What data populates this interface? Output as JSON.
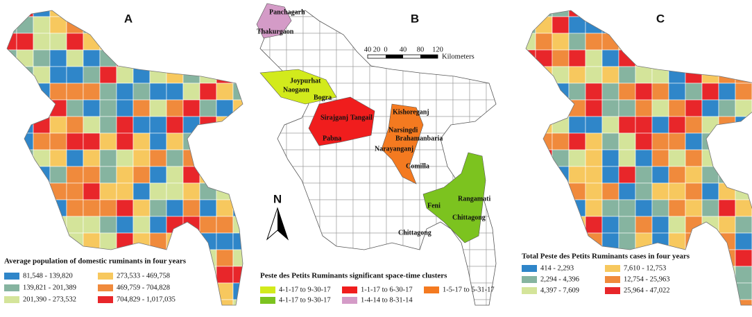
{
  "panels": [
    {
      "label": "A",
      "legend": {
        "title": "Average population of domestic ruminants in four years",
        "items": [
          {
            "label": "81,548 - 139,820",
            "color": "#2f86c9"
          },
          {
            "label": "139,821 - 201,389",
            "color": "#86b4a0"
          },
          {
            "label": "201,390 - 273,532",
            "color": "#d4e49a"
          },
          {
            "label": "273,533 - 469,758",
            "color": "#f7c85e"
          },
          {
            "label": "469,759 - 704,828",
            "color": "#f08a3c"
          },
          {
            "label": "704,829 - 1,017,035",
            "color": "#e8262a"
          }
        ]
      }
    },
    {
      "label": "B",
      "legend": {
        "title": "Peste des Petits Ruminants significant space-time clusters",
        "items": [
          {
            "label": "4-1-17 to 9-30-17",
            "color": "#d2ea1c"
          },
          {
            "label": "4-1-17 to 9-30-17",
            "color": "#7cc31f"
          },
          {
            "label": "1-1-17 to 6-30-17",
            "color": "#f01d1d"
          },
          {
            "label": "1-4-14 to 8-31-14",
            "color": "#d49bc7"
          },
          {
            "label": "1-5-17 to 5-31-17",
            "color": "#f47a20"
          }
        ]
      },
      "districts": [
        "Panchagarh",
        "Thakurgaon",
        "Joypurhat",
        "Naogaon",
        "Bogra",
        "Sirajganj",
        "Tangail",
        "Pabna",
        "Kishoreganj",
        "Narsingdi",
        "Brahamanbaria",
        "Narayanganj",
        "Comilla",
        "Feni",
        "Rangamati",
        "Chittagong",
        "Chittagong"
      ],
      "scale": {
        "ticks": [
          "40",
          "20",
          "0",
          "40",
          "80",
          "120"
        ],
        "unit": "Kilometers"
      },
      "north": "N"
    },
    {
      "label": "C",
      "legend": {
        "title": "Total Peste des Petits Ruminants cases in four years",
        "items": [
          {
            "label": "414 - 2,293",
            "color": "#2f86c9"
          },
          {
            "label": "2,294 - 4,396",
            "color": "#86b4a0"
          },
          {
            "label": "4,397 - 7,609",
            "color": "#d4e49a"
          },
          {
            "label": "7,610 - 12,753",
            "color": "#f7c85e"
          },
          {
            "label": "12,754 - 25,963",
            "color": "#f08a3c"
          },
          {
            "label": "25,964 - 47,022",
            "color": "#e8262a"
          }
        ]
      }
    }
  ]
}
